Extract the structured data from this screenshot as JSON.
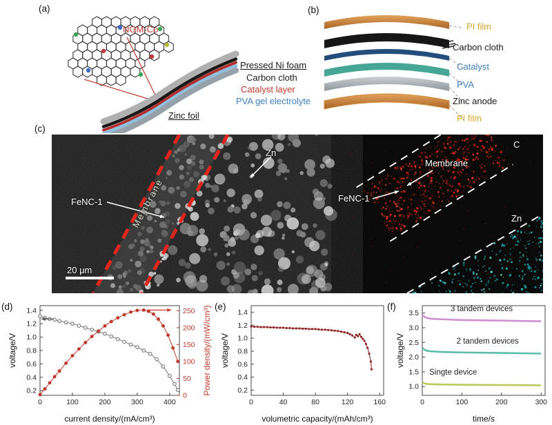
{
  "colors": {
    "catalyst_red": "#c0392b",
    "pva_blue": "#3f7fbf",
    "pi_film_yellow": "#d9a72b",
    "membrane_dash_red": "#e3261d",
    "eds_carbon_red": "#d42015",
    "eds_zinc_cyan": "#28d8d8"
  },
  "figure_labels": {
    "a": "(a)",
    "b": "(b)",
    "c": "(c)",
    "d": "(d)",
    "e": "(e)",
    "f": "(f)"
  },
  "panels": {
    "a": {
      "inset_label": "NGM-Co",
      "layers": [
        {
          "label": "Pressed Ni foam"
        },
        {
          "label": "Carbon cloth"
        },
        {
          "label": "Catalyst layer"
        },
        {
          "label": "PVA gel electrolyte"
        },
        {
          "label": "Zinc foil"
        }
      ]
    },
    "b": {
      "layers": [
        {
          "label": "PI film"
        },
        {
          "label": "Carbon cloth"
        },
        {
          "label": "Catalyst"
        },
        {
          "label": "PVA"
        },
        {
          "label": "Zinc anode"
        },
        {
          "label": "PI film"
        }
      ]
    },
    "c": {
      "labels": {
        "zn_left": "Zn",
        "membrane_left": "Membrane",
        "fenc_left": "FeNC-1",
        "scalebar": "20 μm",
        "membrane_right": "Membrane",
        "fenc_right": "FeNC-1",
        "c_map": "C",
        "zn_map": "Zn"
      }
    }
  },
  "chart_data": [
    {
      "type": "line",
      "panel": "d",
      "xlabel": "current density/(mA/cm³)",
      "ylabel": "voltage/V",
      "xlim": [
        0,
        430
      ],
      "ylim": [
        0.13,
        1.47
      ],
      "xticks": [
        0,
        100,
        200,
        300,
        400
      ],
      "xtick_labels": [
        "0",
        "100",
        "200",
        "300",
        "400"
      ],
      "yticks": [
        0.2,
        0.4,
        0.6,
        0.8,
        1.0,
        1.2,
        1.4
      ],
      "ytick_labels": [
        "0.2",
        "0.4",
        "0.6",
        "0.8",
        "1.0",
        "1.2",
        "1.4"
      ],
      "right": {
        "label": "Power density/(mW/cm³)",
        "color": "#c0392b",
        "ylim": [
          0,
          265
        ],
        "ticks": [
          0,
          50,
          100,
          150,
          200,
          250
        ],
        "tick_labels": [
          "0",
          "50",
          "100",
          "150",
          "200",
          "250"
        ]
      },
      "series": [
        {
          "name": "voltage",
          "axis": "left",
          "color": "#777777",
          "marker": "o",
          "hollow": true,
          "points": [
            [
              0,
              1.31
            ],
            [
              15,
              1.29
            ],
            [
              30,
              1.27
            ],
            [
              45,
              1.26
            ],
            [
              60,
              1.24
            ],
            [
              80,
              1.22
            ],
            [
              100,
              1.2
            ],
            [
              120,
              1.17
            ],
            [
              140,
              1.14
            ],
            [
              160,
              1.11
            ],
            [
              180,
              1.08
            ],
            [
              200,
              1.05
            ],
            [
              220,
              1.01
            ],
            [
              240,
              0.97
            ],
            [
              260,
              0.93
            ],
            [
              280,
              0.89
            ],
            [
              300,
              0.85
            ],
            [
              320,
              0.8
            ],
            [
              340,
              0.75
            ],
            [
              360,
              0.67
            ],
            [
              380,
              0.56
            ],
            [
              400,
              0.42
            ],
            [
              415,
              0.3
            ],
            [
              425,
              0.21
            ]
          ]
        },
        {
          "name": "power density",
          "axis": "right",
          "color": "#c0392b",
          "marker": "o",
          "points": [
            [
              0,
              2
            ],
            [
              15,
              19
            ],
            [
              30,
              37
            ],
            [
              45,
              55
            ],
            [
              60,
              72
            ],
            [
              80,
              95
            ],
            [
              100,
              117
            ],
            [
              120,
              137
            ],
            [
              140,
              156
            ],
            [
              160,
              174
            ],
            [
              180,
              190
            ],
            [
              200,
              205
            ],
            [
              220,
              218
            ],
            [
              240,
              229
            ],
            [
              260,
              238
            ],
            [
              280,
              246
            ],
            [
              300,
              251
            ],
            [
              320,
              252
            ],
            [
              335,
              248
            ],
            [
              350,
              240
            ],
            [
              365,
              225
            ],
            [
              380,
              205
            ],
            [
              395,
              178
            ],
            [
              410,
              140
            ],
            [
              425,
              100
            ]
          ]
        }
      ],
      "annotations": [
        {
          "type": "arrow",
          "axis": "left",
          "y": 1.27,
          "x1": 42,
          "x2": 4,
          "color": "#555555"
        },
        {
          "type": "arrow",
          "axis": "right",
          "y": 252,
          "x1": 330,
          "x2": 405,
          "color": "#c0392b"
        }
      ]
    },
    {
      "type": "line",
      "panel": "e",
      "xlabel": "volumetric capacity/(mAh/cm³)",
      "ylabel": "voltage/V",
      "xlim": [
        0,
        165
      ],
      "ylim": [
        0.12,
        1.5
      ],
      "xticks": [
        0,
        40,
        80,
        120,
        160
      ],
      "xtick_labels": [
        "0",
        "40",
        "80",
        "120",
        "160"
      ],
      "yticks": [
        0.2,
        0.4,
        0.6,
        0.8,
        1.0,
        1.2,
        1.4
      ],
      "ytick_labels": [
        "0.2",
        "0.4",
        "0.6",
        "0.8",
        "1.0",
        "1.2",
        "1.4"
      ],
      "series": [
        {
          "name": "discharge",
          "axis": "left",
          "color": "#8b1a1a",
          "marker": "s",
          "width": 1,
          "points": [
            [
              0,
              1.18
            ],
            [
              4,
              1.175
            ],
            [
              8,
              1.175
            ],
            [
              12,
              1.17
            ],
            [
              16,
              1.17
            ],
            [
              20,
              1.17
            ],
            [
              24,
              1.165
            ],
            [
              28,
              1.165
            ],
            [
              32,
              1.16
            ],
            [
              36,
              1.16
            ],
            [
              40,
              1.16
            ],
            [
              44,
              1.155
            ],
            [
              48,
              1.155
            ],
            [
              52,
              1.15
            ],
            [
              56,
              1.15
            ],
            [
              60,
              1.15
            ],
            [
              64,
              1.145
            ],
            [
              68,
              1.145
            ],
            [
              72,
              1.14
            ],
            [
              76,
              1.14
            ],
            [
              80,
              1.14
            ],
            [
              84,
              1.135
            ],
            [
              88,
              1.13
            ],
            [
              92,
              1.13
            ],
            [
              96,
              1.125
            ],
            [
              100,
              1.12
            ],
            [
              104,
              1.115
            ],
            [
              108,
              1.11
            ],
            [
              112,
              1.1
            ],
            [
              116,
              1.09
            ],
            [
              120,
              1.08
            ],
            [
              123,
              1.06
            ],
            [
              126,
              1.04
            ],
            [
              129,
              1.01
            ],
            [
              131,
              1.05
            ],
            [
              133,
              1.03
            ],
            [
              135,
              1.06
            ],
            [
              137,
              1.02
            ],
            [
              139,
              0.99
            ],
            [
              141,
              0.96
            ],
            [
              143,
              0.91
            ],
            [
              145,
              0.85
            ],
            [
              147,
              0.76
            ],
            [
              149,
              0.64
            ],
            [
              150,
              0.52
            ]
          ]
        }
      ],
      "annotations": []
    },
    {
      "type": "line",
      "panel": "f",
      "xlabel": "time/s",
      "ylabel": "voltage/V",
      "xlim": [
        0,
        310
      ],
      "ylim": [
        0.7,
        3.75
      ],
      "xticks": [
        0,
        100,
        200,
        300
      ],
      "xtick_labels": [
        "0",
        "100",
        "200",
        "300"
      ],
      "yticks": [
        1.0,
        1.5,
        2.0,
        2.5,
        3.0,
        3.5
      ],
      "ytick_labels": [
        "1.0",
        "1.5",
        "2.0",
        "2.5",
        "3.0",
        "3.5"
      ],
      "series": [
        {
          "name": "3 tandem devices",
          "axis": "left",
          "color": "#cf8fd0",
          "width": 2.6,
          "points": [
            [
              0,
              3.44
            ],
            [
              5,
              3.38
            ],
            [
              10,
              3.34
            ],
            [
              20,
              3.31
            ],
            [
              40,
              3.29
            ],
            [
              60,
              3.28
            ],
            [
              80,
              3.27
            ],
            [
              100,
              3.26
            ],
            [
              150,
              3.25
            ],
            [
              200,
              3.24
            ],
            [
              250,
              3.23
            ],
            [
              300,
              3.22
            ]
          ]
        },
        {
          "name": "2 tandem devices",
          "axis": "left",
          "color": "#5cbcae",
          "width": 2.6,
          "points": [
            [
              0,
              2.32
            ],
            [
              5,
              2.26
            ],
            [
              10,
              2.22
            ],
            [
              20,
              2.2
            ],
            [
              40,
              2.18
            ],
            [
              60,
              2.17
            ],
            [
              100,
              2.16
            ],
            [
              150,
              2.15
            ],
            [
              200,
              2.14
            ],
            [
              250,
              2.13
            ],
            [
              300,
              2.12
            ]
          ]
        },
        {
          "name": "Singte device",
          "axis": "left",
          "color": "#bcc95a",
          "width": 2.6,
          "points": [
            [
              0,
              1.16
            ],
            [
              5,
              1.11
            ],
            [
              10,
              1.09
            ],
            [
              20,
              1.08
            ],
            [
              40,
              1.07
            ],
            [
              100,
              1.06
            ],
            [
              200,
              1.05
            ],
            [
              300,
              1.04
            ]
          ]
        }
      ],
      "annotations": [
        {
          "type": "text",
          "x": 150,
          "y": 3.56,
          "text": "3 tandem devices",
          "color": "#222222"
        },
        {
          "type": "text",
          "x": 165,
          "y": 2.46,
          "text": "2 tandem devices",
          "color": "#222222"
        },
        {
          "type": "text",
          "x": 78,
          "y": 1.4,
          "text": "Singte device",
          "color": "#222222"
        }
      ]
    }
  ]
}
